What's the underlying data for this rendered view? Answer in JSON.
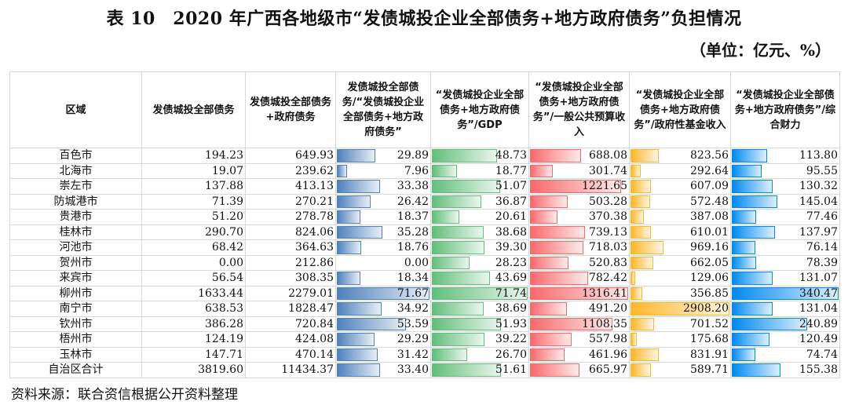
{
  "title": "表 10　2020 年广西各地级市“发债城投企业全部债务+地方政府债务”负担情况",
  "unit": "（单位：亿元、%）",
  "source": "资料来源：联合资信根据公开资料整理",
  "bar_colors": [
    "#4f81bd",
    "#63be7b",
    "#f8696b",
    "#ffb628",
    "#008aef"
  ],
  "headers": [
    "区域",
    "发债城投全部债务",
    "发债城投全部债务+政府债务",
    "发债城投全部债务/“发债城投企业全部债务+地方政府债务”",
    "“发债城投企业全部债务+地方政府债务”/GDP",
    "“发债城投企业全部债务+地方政府债务”/一般公共预算收入",
    "“发债城投企业全部债务+地方政府债务”/政府性基金收入",
    "“发债城投企业全部债务+地方政府债务”/综合财力"
  ],
  "rows": [
    [
      "百色市",
      "194.23",
      "649.93",
      "29.89",
      "48.73",
      "688.08",
      "823.56",
      "113.80"
    ],
    [
      "北海市",
      "19.07",
      "239.62",
      "7.96",
      "18.77",
      "301.74",
      "292.64",
      "95.55"
    ],
    [
      "崇左市",
      "137.88",
      "413.13",
      "33.38",
      "51.07",
      "1221.65",
      "607.09",
      "130.32"
    ],
    [
      "防城港市",
      "71.39",
      "270.21",
      "26.42",
      "36.87",
      "503.28",
      "572.48",
      "145.04"
    ],
    [
      "贵港市",
      "51.20",
      "278.78",
      "18.37",
      "20.61",
      "370.38",
      "387.08",
      "77.46"
    ],
    [
      "桂林市",
      "290.70",
      "824.06",
      "35.28",
      "38.68",
      "739.13",
      "610.01",
      "137.97"
    ],
    [
      "河池市",
      "68.42",
      "364.63",
      "18.76",
      "39.30",
      "718.03",
      "969.16",
      "76.14"
    ],
    [
      "贺州市",
      "0.00",
      "212.86",
      "0.00",
      "28.23",
      "520.83",
      "662.05",
      "78.39"
    ],
    [
      "来宾市",
      "56.54",
      "308.35",
      "18.34",
      "43.69",
      "782.42",
      "129.06",
      "131.07"
    ],
    [
      "柳州市",
      "1633.44",
      "2279.01",
      "71.67",
      "71.74",
      "1316.41",
      "356.85",
      "340.47"
    ],
    [
      "南宁市",
      "638.53",
      "1828.47",
      "34.92",
      "38.69",
      "491.20",
      "2908.20",
      "131.04"
    ],
    [
      "钦州市",
      "386.28",
      "720.84",
      "53.59",
      "51.93",
      "1108.35",
      "701.52",
      "240.89"
    ],
    [
      "梧州市",
      "124.19",
      "424.08",
      "29.29",
      "39.22",
      "557.98",
      "175.68",
      "120.49"
    ],
    [
      "玉林市",
      "147.71",
      "470.14",
      "31.42",
      "26.70",
      "461.96",
      "831.91",
      "74.74"
    ],
    [
      "自治区合计",
      "3819.60",
      "11434.37",
      "33.40",
      "51.61",
      "665.97",
      "589.71",
      "155.38"
    ]
  ]
}
